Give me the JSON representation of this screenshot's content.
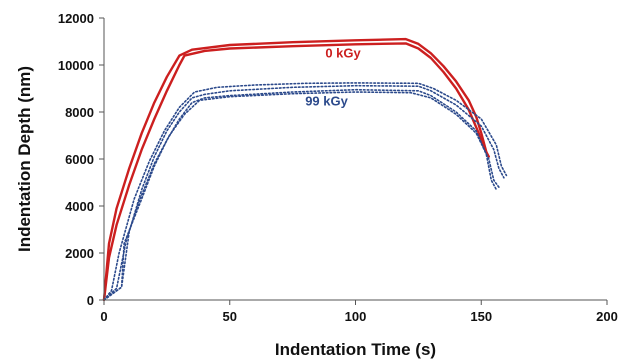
{
  "chart_data": {
    "type": "line",
    "xlabel": "Indentation Time (s)",
    "ylabel": "Indentation Depth (nm)",
    "xlim": [
      0,
      200
    ],
    "ylim": [
      0,
      12000
    ],
    "xticks": [
      0,
      50,
      100,
      150,
      200
    ],
    "yticks": [
      0,
      2000,
      4000,
      6000,
      8000,
      10000,
      12000
    ],
    "grid": false,
    "series": [
      {
        "name": "0 kGy",
        "color": "#cc1f1f",
        "style": "solid",
        "curves": [
          [
            [
              0,
              0
            ],
            [
              2,
              2400
            ],
            [
              5,
              3900
            ],
            [
              10,
              5600
            ],
            [
              15,
              7100
            ],
            [
              20,
              8400
            ],
            [
              25,
              9500
            ],
            [
              30,
              10400
            ],
            [
              35,
              10650
            ],
            [
              50,
              10850
            ],
            [
              75,
              10970
            ],
            [
              100,
              11050
            ],
            [
              120,
              11100
            ],
            [
              125,
              10900
            ],
            [
              130,
              10500
            ],
            [
              135,
              9950
            ],
            [
              140,
              9300
            ],
            [
              145,
              8500
            ],
            [
              148,
              7800
            ],
            [
              150,
              7100
            ],
            [
              152,
              6300
            ]
          ],
          [
            [
              0,
              0
            ],
            [
              2,
              1800
            ],
            [
              5,
              3200
            ],
            [
              10,
              4900
            ],
            [
              15,
              6400
            ],
            [
              20,
              7700
            ],
            [
              25,
              8900
            ],
            [
              30,
              10000
            ],
            [
              32,
              10400
            ],
            [
              40,
              10600
            ],
            [
              50,
              10700
            ],
            [
              75,
              10800
            ],
            [
              100,
              10880
            ],
            [
              120,
              10920
            ],
            [
              125,
              10700
            ],
            [
              130,
              10300
            ],
            [
              135,
              9700
            ],
            [
              140,
              9000
            ],
            [
              145,
              8100
            ],
            [
              149,
              7100
            ],
            [
              151,
              6500
            ],
            [
              153,
              6100
            ]
          ]
        ]
      },
      {
        "name": "99 kGy",
        "color": "#2c4a8c",
        "style": "dotted",
        "curves": [
          [
            [
              0,
              0
            ],
            [
              7,
              550
            ],
            [
              10,
              2900
            ],
            [
              15,
              4700
            ],
            [
              20,
              6100
            ],
            [
              25,
              7200
            ],
            [
              30,
              8000
            ],
            [
              35,
              8600
            ],
            [
              40,
              8750
            ],
            [
              50,
              8900
            ],
            [
              75,
              9050
            ],
            [
              100,
              9120
            ],
            [
              125,
              9100
            ],
            [
              130,
              8900
            ],
            [
              140,
              8300
            ],
            [
              150,
              7400
            ],
            [
              155,
              6400
            ],
            [
              157,
              5600
            ],
            [
              159,
              5200
            ]
          ],
          [
            [
              0,
              0
            ],
            [
              7,
              550
            ],
            [
              8,
              2400
            ],
            [
              15,
              4300
            ],
            [
              20,
              5700
            ],
            [
              25,
              6800
            ],
            [
              30,
              7700
            ],
            [
              35,
              8400
            ],
            [
              40,
              8600
            ],
            [
              50,
              8700
            ],
            [
              75,
              8850
            ],
            [
              100,
              8950
            ],
            [
              125,
              8900
            ],
            [
              130,
              8700
            ],
            [
              140,
              8000
            ],
            [
              148,
              7200
            ],
            [
              152,
              6200
            ],
            [
              154,
              5100
            ],
            [
              156,
              4700
            ]
          ],
          [
            [
              0,
              0
            ],
            [
              3,
              400
            ],
            [
              6,
              2000
            ],
            [
              12,
              4300
            ],
            [
              18,
              5900
            ],
            [
              24,
              7200
            ],
            [
              30,
              8200
            ],
            [
              36,
              8850
            ],
            [
              45,
              9050
            ],
            [
              60,
              9150
            ],
            [
              80,
              9220
            ],
            [
              100,
              9240
            ],
            [
              125,
              9220
            ],
            [
              131,
              9000
            ],
            [
              140,
              8500
            ],
            [
              150,
              7700
            ],
            [
              156,
              6600
            ],
            [
              158,
              5700
            ],
            [
              160,
              5300
            ]
          ],
          [
            [
              0,
              0
            ],
            [
              5,
              500
            ],
            [
              9,
              2600
            ],
            [
              14,
              4200
            ],
            [
              20,
              5800
            ],
            [
              26,
              7000
            ],
            [
              32,
              7900
            ],
            [
              38,
              8500
            ],
            [
              50,
              8650
            ],
            [
              75,
              8780
            ],
            [
              100,
              8850
            ],
            [
              122,
              8820
            ],
            [
              130,
              8600
            ],
            [
              140,
              7900
            ],
            [
              148,
              7100
            ],
            [
              153,
              6000
            ],
            [
              155,
              5100
            ],
            [
              157,
              4800
            ]
          ]
        ]
      }
    ],
    "annotations": [
      {
        "text": "0 kGy",
        "x": 88,
        "y": 10320,
        "color": "#cc1f1f"
      },
      {
        "text": "99 kGy",
        "x": 80,
        "y": 8270,
        "color": "#2c4a8c"
      }
    ]
  }
}
